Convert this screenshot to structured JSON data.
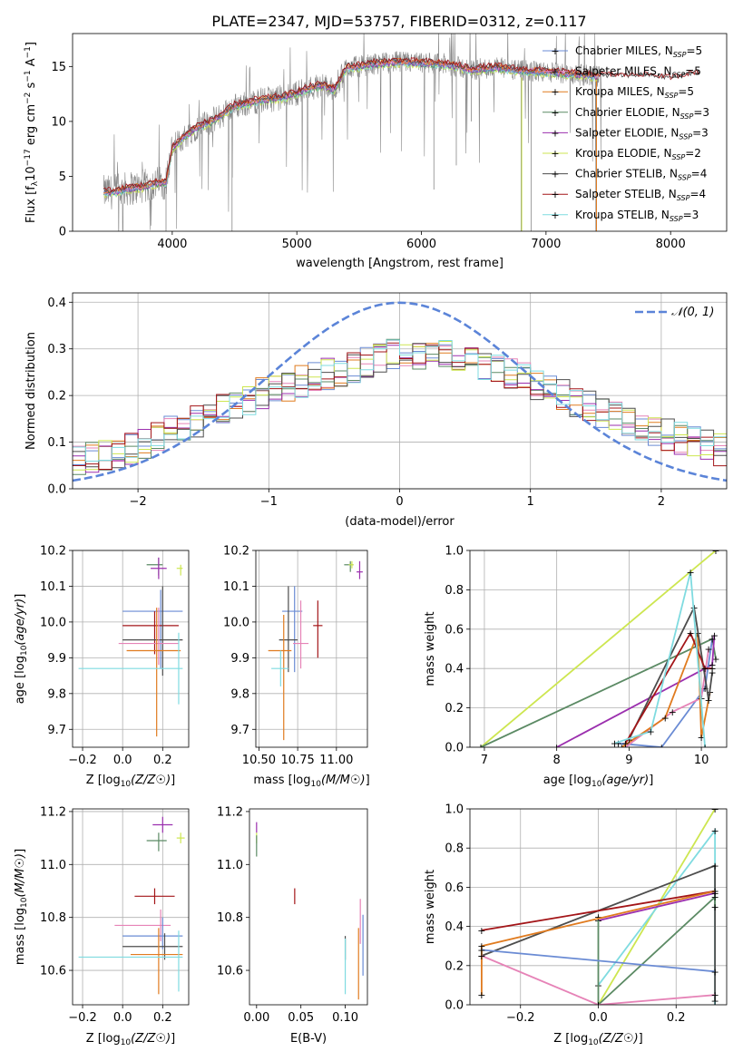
{
  "figure_title": "PLATE=2347, MJD=53757, FIBERID=0312, z=0.117",
  "colors": {
    "chabrier_miles": "#6a8bd4",
    "salpeter_miles": "#e683b7",
    "kroupa_miles": "#e07b1f",
    "chabrier_elodie": "#5b8a64",
    "salpeter_elodie": "#9b2fae",
    "kroupa_elodie": "#cde650",
    "chabrier_stelib": "#4d4d4d",
    "salpeter_stelib": "#a31518",
    "kroupa_stelib": "#7fdbe0",
    "data_gray": "#888888",
    "normal": "#5b84d8"
  },
  "chart_data": [
    {
      "id": "spectrum",
      "type": "line",
      "title": "",
      "xlabel": "wavelength [Angstrom, rest frame]",
      "ylabel": "Flux [f",
      "xlim": [
        3200,
        8450
      ],
      "ylim": [
        0,
        18
      ],
      "xticks": [
        4000,
        5000,
        6000,
        7000,
        8000
      ],
      "yticks": [
        0,
        5,
        10,
        15
      ],
      "legend_loc": "top-right",
      "legend": [
        {
          "key": "chabrier_miles",
          "label": "Chabrier MILES, N",
          "sub": "SSP",
          "suffix": "=5"
        },
        {
          "key": "salpeter_miles",
          "label": "Salpeter MILES, N",
          "sub": "SSP",
          "suffix": "=5"
        },
        {
          "key": "kroupa_miles",
          "label": "Kroupa MILES, N",
          "sub": "SSP",
          "suffix": "=5"
        },
        {
          "key": "chabrier_elodie",
          "label": "Chabrier ELODIE, N",
          "sub": "SSP",
          "suffix": "=3"
        },
        {
          "key": "salpeter_elodie",
          "label": "Salpeter ELODIE, N",
          "sub": "SSP",
          "suffix": "=3"
        },
        {
          "key": "kroupa_elodie",
          "label": "Kroupa ELODIE, N",
          "sub": "SSP",
          "suffix": "=2"
        },
        {
          "key": "chabrier_stelib",
          "label": "Chabrier STELIB, N",
          "sub": "SSP",
          "suffix": "=4"
        },
        {
          "key": "salpeter_stelib",
          "label": "Salpeter STELIB, N",
          "sub": "SSP",
          "suffix": "=4"
        },
        {
          "key": "kroupa_stelib",
          "label": "Kroupa STELIB, N",
          "sub": "SSP",
          "suffix": "=3"
        }
      ],
      "data_envelope": {
        "x": [
          3400,
          3550,
          3650,
          3750,
          3850,
          3950,
          4000,
          4100,
          4200,
          4300,
          4400,
          4500,
          4700,
          4900,
          5000,
          5100,
          5200,
          5300,
          5400,
          5500,
          5600,
          5800,
          6000,
          6200,
          6400,
          6600,
          6800,
          7000,
          7200,
          7400,
          7600,
          7800,
          8000,
          8200
        ],
        "y": [
          3.5,
          3.6,
          3.9,
          4.0,
          4.3,
          4.5,
          7.6,
          8.6,
          9.5,
          9.9,
          10.6,
          11.4,
          11.9,
          12.2,
          12.6,
          13.0,
          13.3,
          12.9,
          14.9,
          15.0,
          15.2,
          15.4,
          15.3,
          15.2,
          14.7,
          14.9,
          14.6,
          14.5,
          14.3,
          14.1,
          14.0,
          14.1,
          13.8,
          14.3
        ]
      }
    },
    {
      "id": "residuals",
      "type": "histogram",
      "xlabel": "(data-model)/error",
      "ylabel": "Normed distribution",
      "xlim": [
        -2.5,
        2.5
      ],
      "ylim": [
        0,
        0.42
      ],
      "xticks": [
        -2,
        -1,
        0,
        1,
        2
      ],
      "yticks": [
        0.0,
        0.1,
        0.2,
        0.3,
        0.4
      ],
      "legend_loc": "top-right",
      "normal_label": "𝒩(0, 1)",
      "envelope": {
        "x": [
          -2.5,
          -2.25,
          -2.0,
          -1.75,
          -1.5,
          -1.25,
          -1.0,
          -0.75,
          -0.5,
          -0.25,
          0.0,
          0.25,
          0.5,
          0.75,
          1.0,
          1.25,
          1.5,
          1.75,
          2.0,
          2.25,
          2.5
        ],
        "y": [
          0.06,
          0.07,
          0.09,
          0.13,
          0.15,
          0.18,
          0.21,
          0.23,
          0.25,
          0.27,
          0.29,
          0.29,
          0.28,
          0.26,
          0.23,
          0.2,
          0.17,
          0.14,
          0.12,
          0.1,
          0.08
        ]
      }
    },
    {
      "id": "age_vs_Z",
      "type": "errorbar",
      "xlabel": "Z [log",
      "ylabel": "age  [log",
      "xlim": [
        -0.25,
        0.33
      ],
      "ylim": [
        9.65,
        10.2
      ],
      "xticks": [
        -0.2,
        0.0,
        0.2
      ],
      "yticks": [
        9.7,
        9.8,
        9.9,
        10.0,
        10.1,
        10.2
      ],
      "points": [
        {
          "key": "chabrier_elodie",
          "x": 0.18,
          "y": 10.16,
          "xerr": [
            0.06,
            0.02
          ],
          "yerr": [
            0.03,
            0.02
          ]
        },
        {
          "key": "salpeter_elodie",
          "x": 0.18,
          "y": 10.15,
          "xerr": [
            0.04,
            0.04
          ],
          "yerr": [
            0.03,
            0.03
          ]
        },
        {
          "key": "kroupa_elodie",
          "x": 0.29,
          "y": 10.15,
          "xerr": [
            0.02,
            0.01
          ],
          "yerr": [
            0.02,
            0.01
          ]
        },
        {
          "key": "chabrier_miles",
          "x": 0.19,
          "y": 10.03,
          "xerr": [
            0.19,
            0.11
          ],
          "yerr": [
            0.16,
            0.06
          ]
        },
        {
          "key": "salpeter_stelib",
          "x": 0.16,
          "y": 9.99,
          "xerr": [
            0.16,
            0.12
          ],
          "yerr": [
            0.08,
            0.04
          ]
        },
        {
          "key": "chabrier_stelib",
          "x": 0.2,
          "y": 9.95,
          "xerr": [
            0.2,
            0.1
          ],
          "yerr": [
            0.1,
            0.15
          ]
        },
        {
          "key": "salpeter_miles",
          "x": 0.18,
          "y": 9.94,
          "xerr": [
            0.2,
            0.1
          ],
          "yerr": [
            0.06,
            0.1
          ]
        },
        {
          "key": "kroupa_miles",
          "x": 0.17,
          "y": 9.92,
          "xerr": [
            0.15,
            0.12
          ],
          "yerr": [
            0.24,
            0.12
          ]
        },
        {
          "key": "kroupa_stelib",
          "x": 0.28,
          "y": 9.87,
          "xerr": [
            0.5,
            0.02
          ],
          "yerr": [
            0.1,
            0.1
          ]
        }
      ]
    },
    {
      "id": "age_vs_mass",
      "type": "errorbar",
      "xlabel": "mass [log",
      "ylabel": "",
      "xlim": [
        10.48,
        11.2
      ],
      "ylim": [
        9.65,
        10.2
      ],
      "xticks": [
        10.5,
        10.75,
        11.0
      ],
      "yticks": [
        9.7,
        9.8,
        9.9,
        10.0,
        10.1,
        10.2
      ],
      "points": [
        {
          "key": "chabrier_elodie",
          "x": 11.09,
          "y": 10.16,
          "xerr": [
            0.04,
            0.02
          ],
          "yerr": [
            0.02,
            0.01
          ]
        },
        {
          "key": "kroupa_elodie",
          "x": 11.1,
          "y": 10.16,
          "xerr": [
            0.02,
            0.01
          ],
          "yerr": [
            0.01,
            0.01
          ]
        },
        {
          "key": "salpeter_elodie",
          "x": 11.15,
          "y": 10.14,
          "xerr": [
            0.02,
            0.02
          ],
          "yerr": [
            0.02,
            0.03
          ]
        },
        {
          "key": "chabrier_miles",
          "x": 10.73,
          "y": 10.03,
          "xerr": [
            0.08,
            0.05
          ],
          "yerr": [
            0.17,
            0.07
          ]
        },
        {
          "key": "salpeter_stelib",
          "x": 10.88,
          "y": 9.99,
          "xerr": [
            0.03,
            0.03
          ],
          "yerr": [
            0.09,
            0.07
          ]
        },
        {
          "key": "chabrier_stelib",
          "x": 10.69,
          "y": 9.95,
          "xerr": [
            0.06,
            0.06
          ],
          "yerr": [
            0.09,
            0.15
          ]
        },
        {
          "key": "salpeter_miles",
          "x": 10.77,
          "y": 9.94,
          "xerr": [
            0.05,
            0.05
          ],
          "yerr": [
            0.07,
            0.12
          ]
        },
        {
          "key": "kroupa_miles",
          "x": 10.66,
          "y": 9.92,
          "xerr": [
            0.1,
            0.05
          ],
          "yerr": [
            0.25,
            0.1
          ]
        },
        {
          "key": "kroupa_stelib",
          "x": 10.64,
          "y": 9.87,
          "xerr": [
            0.06,
            0.05
          ],
          "yerr": [
            0.05,
            0.05
          ]
        }
      ]
    },
    {
      "id": "mw_vs_age",
      "type": "line",
      "xlabel": "age  [log",
      "ylabel": "mass weight",
      "xlim": [
        6.8,
        10.35
      ],
      "ylim": [
        0,
        1
      ],
      "xticks": [
        7,
        8,
        9,
        10
      ],
      "yticks": [
        0.0,
        0.2,
        0.4,
        0.6,
        0.8,
        1.0
      ],
      "series": [
        {
          "key": "kroupa_elodie",
          "x": [
            6.95,
            10.2
          ],
          "y": [
            0.0,
            1.0
          ]
        },
        {
          "key": "chabrier_elodie",
          "x": [
            6.95,
            10.15,
            10.2
          ],
          "y": [
            0.0,
            0.55,
            0.45
          ]
        },
        {
          "key": "salpeter_elodie",
          "x": [
            8.0,
            10.15,
            10.18
          ],
          "y": [
            0.0,
            0.42,
            0.57
          ]
        },
        {
          "key": "chabrier_miles",
          "x": [
            8.85,
            9.45,
            10.05,
            10.15
          ],
          "y": [
            0.02,
            0.0,
            0.3,
            0.55
          ]
        },
        {
          "key": "salpeter_miles",
          "x": [
            8.95,
            9.6,
            10.0,
            10.1
          ],
          "y": [
            0.0,
            0.18,
            0.25,
            0.5
          ]
        },
        {
          "key": "kroupa_miles",
          "x": [
            8.9,
            9.5,
            9.95,
            10.0,
            10.12
          ],
          "y": [
            0.0,
            0.15,
            0.58,
            0.05,
            0.28
          ]
        },
        {
          "key": "chabrier_stelib",
          "x": [
            9.0,
            9.9,
            10.1,
            10.15
          ],
          "y": [
            0.04,
            0.71,
            0.24,
            0.38
          ]
        },
        {
          "key": "salpeter_stelib",
          "x": [
            8.95,
            9.85,
            10.05,
            10.15
          ],
          "y": [
            0.02,
            0.58,
            0.4,
            0.4
          ]
        },
        {
          "key": "kroupa_stelib",
          "x": [
            8.8,
            9.3,
            9.85,
            10.05
          ],
          "y": [
            0.02,
            0.08,
            0.89,
            0.0
          ]
        }
      ]
    },
    {
      "id": "mass_vs_Z",
      "type": "errorbar",
      "xlabel": "Z [log",
      "ylabel": "mass [log",
      "xlim": [
        -0.25,
        0.33
      ],
      "ylim": [
        10.47,
        11.21
      ],
      "xticks": [
        -0.2,
        0.0,
        0.2
      ],
      "yticks": [
        10.6,
        10.8,
        11.0,
        11.2
      ],
      "points": [
        {
          "key": "salpeter_elodie",
          "x": 0.2,
          "y": 11.15,
          "xerr": [
            0.05,
            0.05
          ],
          "yerr": [
            0.03,
            0.03
          ]
        },
        {
          "key": "kroupa_elodie",
          "x": 0.29,
          "y": 11.1,
          "xerr": [
            0.02,
            0.02
          ],
          "yerr": [
            0.02,
            0.02
          ]
        },
        {
          "key": "chabrier_elodie",
          "x": 0.18,
          "y": 11.09,
          "xerr": [
            0.06,
            0.04
          ],
          "yerr": [
            0.04,
            0.03
          ]
        },
        {
          "key": "salpeter_stelib",
          "x": 0.16,
          "y": 10.88,
          "xerr": [
            0.1,
            0.1
          ],
          "yerr": [
            0.03,
            0.03
          ]
        },
        {
          "key": "salpeter_miles",
          "x": 0.19,
          "y": 10.77,
          "xerr": [
            0.23,
            0.05
          ],
          "yerr": [
            0.06,
            0.06
          ]
        },
        {
          "key": "chabrier_miles",
          "x": 0.2,
          "y": 10.73,
          "xerr": [
            0.2,
            0.1
          ],
          "yerr": [
            0.05,
            0.07
          ]
        },
        {
          "key": "chabrier_stelib",
          "x": 0.21,
          "y": 10.69,
          "xerr": [
            0.21,
            0.09
          ],
          "yerr": [
            0.05,
            0.05
          ]
        },
        {
          "key": "kroupa_miles",
          "x": 0.18,
          "y": 10.66,
          "xerr": [
            0.14,
            0.12
          ],
          "yerr": [
            0.15,
            0.1
          ]
        },
        {
          "key": "kroupa_stelib",
          "x": 0.28,
          "y": 10.65,
          "xerr": [
            0.5,
            0.02
          ],
          "yerr": [
            0.13,
            0.1
          ]
        }
      ]
    },
    {
      "id": "mass_vs_ebv",
      "type": "errorbar",
      "xlabel": "E(B-V)",
      "ylabel": "",
      "xlim": [
        -0.008,
        0.125
      ],
      "ylim": [
        10.47,
        11.21
      ],
      "xticks": [
        0.0,
        0.05,
        0.1
      ],
      "yticks": [
        10.6,
        10.8,
        11.0,
        11.2
      ],
      "points": [
        {
          "key": "salpeter_elodie",
          "x": 0.0,
          "y": 11.14,
          "xerr": [
            0,
            0
          ],
          "yerr": [
            0.02,
            0.02
          ]
        },
        {
          "key": "kroupa_elodie",
          "x": 0.0,
          "y": 11.1,
          "xerr": [
            0,
            0
          ],
          "yerr": [
            0.02,
            0.02
          ]
        },
        {
          "key": "chabrier_elodie",
          "x": 0.0,
          "y": 11.08,
          "xerr": [
            0,
            0
          ],
          "yerr": [
            0.05,
            0.03
          ]
        },
        {
          "key": "salpeter_stelib",
          "x": 0.043,
          "y": 10.88,
          "xerr": [
            0,
            0
          ],
          "yerr": [
            0.03,
            0.03
          ]
        },
        {
          "key": "salpeter_miles",
          "x": 0.117,
          "y": 10.77,
          "xerr": [
            0,
            0
          ],
          "yerr": [
            0.07,
            0.1
          ]
        },
        {
          "key": "chabrier_miles",
          "x": 0.12,
          "y": 10.73,
          "xerr": [
            0,
            0
          ],
          "yerr": [
            0.15,
            0.08
          ]
        },
        {
          "key": "chabrier_stelib",
          "x": 0.1,
          "y": 10.69,
          "xerr": [
            0,
            0
          ],
          "yerr": [
            0.05,
            0.04
          ]
        },
        {
          "key": "kroupa_miles",
          "x": 0.115,
          "y": 10.66,
          "xerr": [
            0,
            0
          ],
          "yerr": [
            0.17,
            0.1
          ]
        },
        {
          "key": "kroupa_stelib",
          "x": 0.1,
          "y": 10.64,
          "xerr": [
            0,
            0
          ],
          "yerr": [
            0.13,
            0.08
          ]
        }
      ]
    },
    {
      "id": "mw_vs_Z",
      "type": "line",
      "xlabel": "Z [log",
      "ylabel": "mass weight",
      "xlim": [
        -0.33,
        0.33
      ],
      "ylim": [
        0,
        1
      ],
      "xticks": [
        -0.2,
        0.0,
        0.2
      ],
      "yticks": [
        0.0,
        0.2,
        0.4,
        0.6,
        0.8,
        1.0
      ],
      "series": [
        {
          "key": "kroupa_elodie",
          "x": [
            0.0,
            0.3
          ],
          "y": [
            0.0,
            1.0
          ]
        },
        {
          "key": "kroupa_stelib",
          "x": [
            0.0,
            0.3,
            0.3
          ],
          "y": [
            0.1,
            0.89,
            0.0
          ]
        },
        {
          "key": "chabrier_stelib",
          "x": [
            -0.3,
            0.3,
            0.3
          ],
          "y": [
            0.25,
            0.71,
            0.02
          ]
        },
        {
          "key": "salpeter_stelib",
          "x": [
            -0.3,
            0.3
          ],
          "y": [
            0.38,
            0.58
          ]
        },
        {
          "key": "salpeter_elodie",
          "x": [
            0.0,
            0.3
          ],
          "y": [
            0.43,
            0.57
          ]
        },
        {
          "key": "chabrier_elodie",
          "x": [
            0.0,
            0.0,
            0.3,
            0.3
          ],
          "y": [
            0.45,
            0.0,
            0.55,
            0.5
          ]
        },
        {
          "key": "kroupa_miles",
          "x": [
            -0.3,
            -0.3,
            0.3
          ],
          "y": [
            0.05,
            0.3,
            0.58
          ]
        },
        {
          "key": "chabrier_miles",
          "x": [
            -0.3,
            0.3
          ],
          "y": [
            0.28,
            0.17
          ]
        },
        {
          "key": "salpeter_miles",
          "x": [
            -0.3,
            0.0,
            0.3
          ],
          "y": [
            0.25,
            0.0,
            0.05
          ]
        }
      ]
    }
  ]
}
